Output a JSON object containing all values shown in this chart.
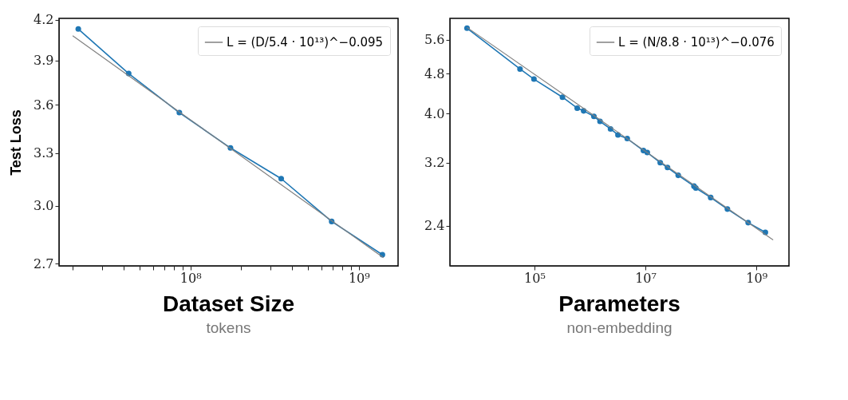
{
  "chart_data": [
    {
      "type": "line",
      "title": "Dataset Size",
      "subtitle": "tokens",
      "ylabel": "Test Loss",
      "log": "xy",
      "grid": false,
      "legend": "top right",
      "xlim": [
        16600000.0,
        1710000000.0
      ],
      "ylim": [
        2.69,
        4.21
      ],
      "xticks": [
        {
          "value": 20000000.0,
          "label": null
        },
        {
          "value": 30000000.0,
          "label": null
        },
        {
          "value": 40000000.0,
          "label": null
        },
        {
          "value": 50000000.0,
          "label": null
        },
        {
          "value": 60000000.0,
          "label": null
        },
        {
          "value": 70000000.0,
          "label": null
        },
        {
          "value": 80000000.0,
          "label": null
        },
        {
          "value": 90000000.0,
          "label": null
        },
        {
          "value": 100000000.0,
          "label": "10⁸"
        },
        {
          "value": 200000000.0,
          "label": null
        },
        {
          "value": 300000000.0,
          "label": null
        },
        {
          "value": 400000000.0,
          "label": null
        },
        {
          "value": 500000000.0,
          "label": null
        },
        {
          "value": 600000000.0,
          "label": null
        },
        {
          "value": 700000000.0,
          "label": null
        },
        {
          "value": 800000000.0,
          "label": null
        },
        {
          "value": 900000000.0,
          "label": null
        },
        {
          "value": 1000000000.0,
          "label": "10⁹"
        }
      ],
      "yticks": [
        {
          "value": 2.7,
          "label": "2.7"
        },
        {
          "value": 3,
          "label": "3.0"
        },
        3.3,
        3.6,
        3.9,
        4.2
      ],
      "series": [
        {
          "marker": "circle",
          "color": "#1f77b4",
          "x": [
            21600000.0,
            43000000.0,
            86000000.0,
            173000000.0,
            346000000.0,
            690000000.0,
            1380000000.0
          ],
          "values": [
            4.13,
            3.81,
            3.55,
            3.33,
            3.15,
            2.915,
            2.745
          ]
        },
        {
          "marker": "none",
          "name": "L = (D/5.4 · 10¹³)^−0.095",
          "color": "#808080",
          "x": [
            20000000.0,
            1400000000.0
          ],
          "values": [
            4.08,
            2.73
          ]
        }
      ]
    },
    {
      "type": "line",
      "title": "Parameters",
      "subtitle": "non-embedding",
      "log": "xy",
      "grid": false,
      "legend": "top right",
      "xlim": [
        3000.0,
        3860000000.0
      ],
      "ylim": [
        2.0,
        6.17
      ],
      "xticks": [
        {
          "value": 100000.0,
          "label": "10⁵"
        },
        {
          "value": 10000000.0,
          "label": "10⁷"
        },
        {
          "value": 1000000000.0,
          "label": "10⁹"
        }
      ],
      "yticks": [
        {
          "value": 2.4,
          "label": "2.4"
        },
        {
          "value": 3.2,
          "label": "3.2"
        },
        {
          "value": 4,
          "label": "4.0"
        },
        {
          "value": 4.8,
          "label": "4.8"
        },
        {
          "value": 5.6,
          "label": "5.6"
        }
      ],
      "series": [
        {
          "marker": "circle",
          "color": "#1f77b4",
          "x": [
            6100.0,
            55000.0,
            98000.0,
            320000.0,
            590000.0,
            770000.0,
            1180000.0,
            1520000.0,
            2350000.0,
            3200000.0,
            4700000.0,
            9200000.0,
            10800000.0,
            18500000.0,
            25000000.0,
            39000000.0,
            75000000.0,
            81000000.0,
            150000000.0,
            300000000.0,
            710000000.0,
            1450000000.0
          ],
          "values": [
            5.9,
            4.9,
            4.68,
            4.31,
            4.1,
            4.05,
            3.95,
            3.86,
            3.73,
            3.63,
            3.57,
            3.38,
            3.35,
            3.2,
            3.13,
            3.02,
            2.875,
            2.85,
            2.73,
            2.59,
            2.435,
            2.33
          ]
        },
        {
          "marker": "none",
          "name": "L = (N/8.8 · 10¹³)^−0.076",
          "color": "#808080",
          "x": [
            6100.0,
            2000000000.0
          ],
          "values": [
            5.92,
            2.25
          ]
        }
      ]
    }
  ]
}
